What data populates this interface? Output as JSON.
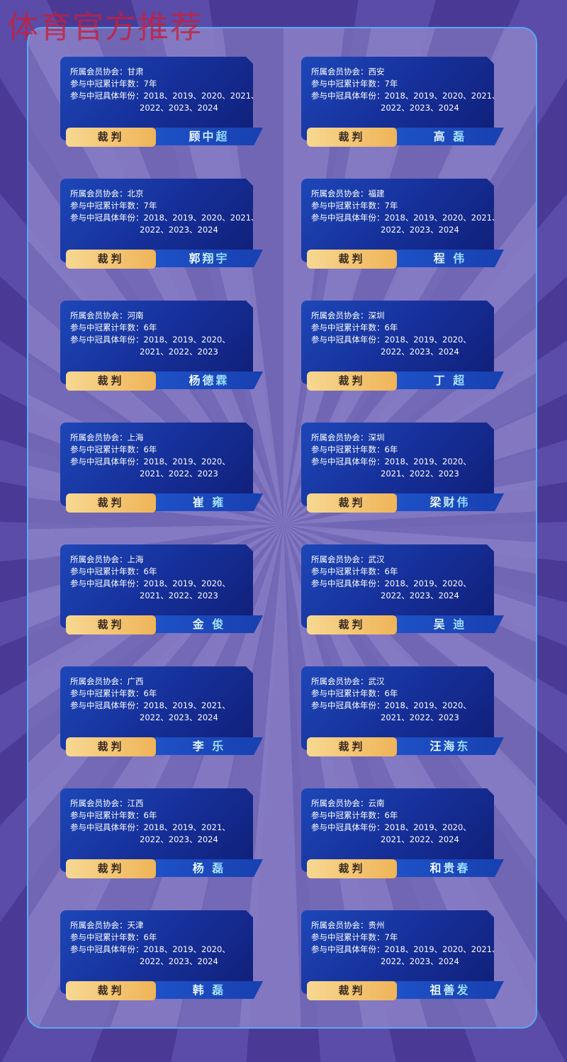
{
  "watermark": "体育官方推荐",
  "labels": {
    "association": "所属会员协会：",
    "count": "参与中冠累计年数：",
    "years": "参与中冠具体年份："
  },
  "cards": [
    {
      "association": "甘肃",
      "count": "7年",
      "years1": "2018、2019、2020、2021、",
      "years2": "2022、2023、2024",
      "role": "裁判",
      "name": "顾中超"
    },
    {
      "association": "西安",
      "count": "7年",
      "years1": "2018、2019、2020、2021、",
      "years2": "2022、2023、2024",
      "role": "裁判",
      "name": "高 磊"
    },
    {
      "association": "北京",
      "count": "7年",
      "years1": "2018、2019、2020、2021、",
      "years2": "2022、2023、2024",
      "role": "裁判",
      "name": "郭翔宇"
    },
    {
      "association": "福建",
      "count": "7年",
      "years1": "2018、2019、2020、2021、",
      "years2": "2022、2023、2024",
      "role": "裁判",
      "name": "程 伟"
    },
    {
      "association": "河南",
      "count": "6年",
      "years1": "2018、2019、2020、",
      "years2": "2021、2022、2023",
      "role": "裁判",
      "name": "杨德霖"
    },
    {
      "association": "深圳",
      "count": "6年",
      "years1": "2018、2019、2020、",
      "years2": "2022、2023、2024",
      "role": "裁判",
      "name": "丁 超"
    },
    {
      "association": "上海",
      "count": "6年",
      "years1": "2018、2019、2020、",
      "years2": "2021、2022、2023",
      "role": "裁判",
      "name": "崔 雍"
    },
    {
      "association": "深圳",
      "count": "6年",
      "years1": "2018、2019、2020、",
      "years2": "2021、2022、2023",
      "role": "裁判",
      "name": "梁财伟"
    },
    {
      "association": "上海",
      "count": "6年",
      "years1": "2018、2019、2020、",
      "years2": "2021、2022、2023",
      "role": "裁判",
      "name": "金 俊"
    },
    {
      "association": "武汉",
      "count": "6年",
      "years1": "2018、2019、2020、",
      "years2": "2022、2023、2024",
      "role": "裁判",
      "name": "吴 迪"
    },
    {
      "association": "广西",
      "count": "6年",
      "years1": "2018、2019、2021、",
      "years2": "2022、2023、2024",
      "role": "裁判",
      "name": "李 乐"
    },
    {
      "association": "武汉",
      "count": "6年",
      "years1": "2018、2019、2020、",
      "years2": "2021、2022、2023",
      "role": "裁判",
      "name": "汪海东"
    },
    {
      "association": "江西",
      "count": "6年",
      "years1": "2018、2019、2021、",
      "years2": "2022、2023、2024",
      "role": "裁判",
      "name": "杨 磊"
    },
    {
      "association": "云南",
      "count": "6年",
      "years1": "2018、2019、2020、",
      "years2": "2021、2022、2024",
      "role": "裁判",
      "name": "和贵春"
    },
    {
      "association": "天津",
      "count": "6年",
      "years1": "2018、2019、2020、",
      "years2": "2022、2023、2024",
      "role": "裁判",
      "name": "韩 磊"
    },
    {
      "association": "贵州",
      "count": "7年",
      "years1": "2018、2019、2020、2021、",
      "years2": "2022、2023、2024",
      "role": "裁判",
      "name": "祖善发"
    }
  ]
}
